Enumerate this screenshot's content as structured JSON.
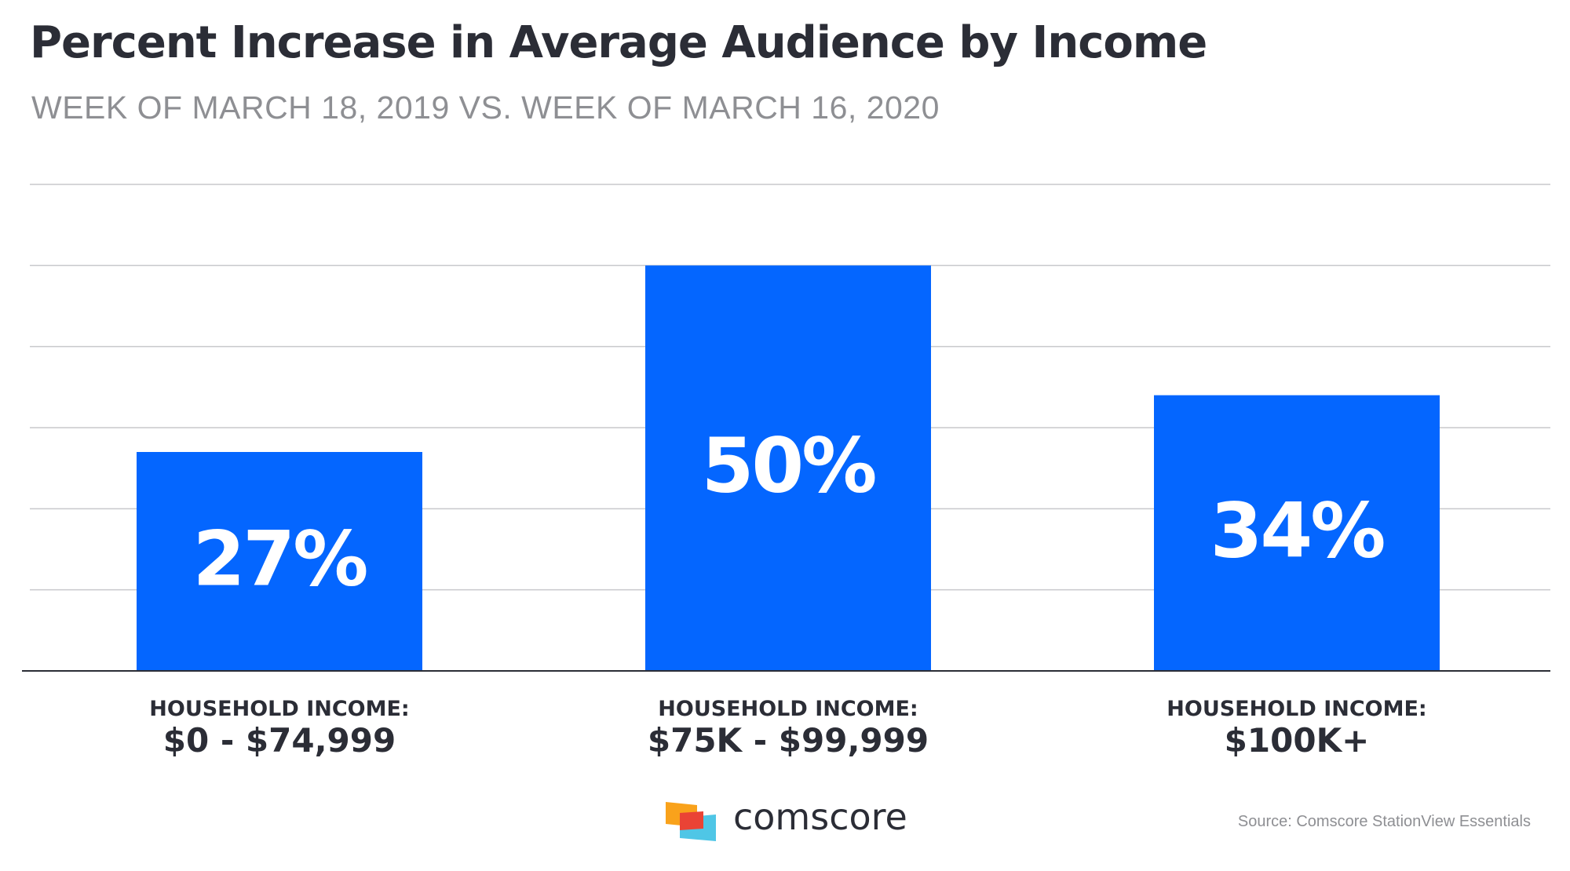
{
  "chart_data": {
    "type": "bar",
    "title": "Percent Increase in Average Audience by Income",
    "subtitle": "WEEK OF MARCH 18, 2019 VS. WEEK OF MARCH 16, 2020",
    "categories": [
      {
        "line1": "HOUSEHOLD INCOME:",
        "line2": "$0 - $74,999"
      },
      {
        "line1": "HOUSEHOLD INCOME:",
        "line2": "$75K - $99,999"
      },
      {
        "line1": "HOUSEHOLD INCOME:",
        "line2": "$100K+"
      }
    ],
    "values": [
      27,
      50,
      34
    ],
    "value_labels": [
      "27%",
      "50%",
      "34%"
    ],
    "unit": "%",
    "ylim": [
      0,
      60
    ],
    "grid": true,
    "bar_color": "#0466ff",
    "value_label_color": "#ffffff"
  },
  "footer": {
    "logo_text": "comscore",
    "logo_colors": [
      "#f9a21b",
      "#ea4335",
      "#4fc6e6"
    ],
    "source": "Source: Comscore StationView Essentials"
  }
}
